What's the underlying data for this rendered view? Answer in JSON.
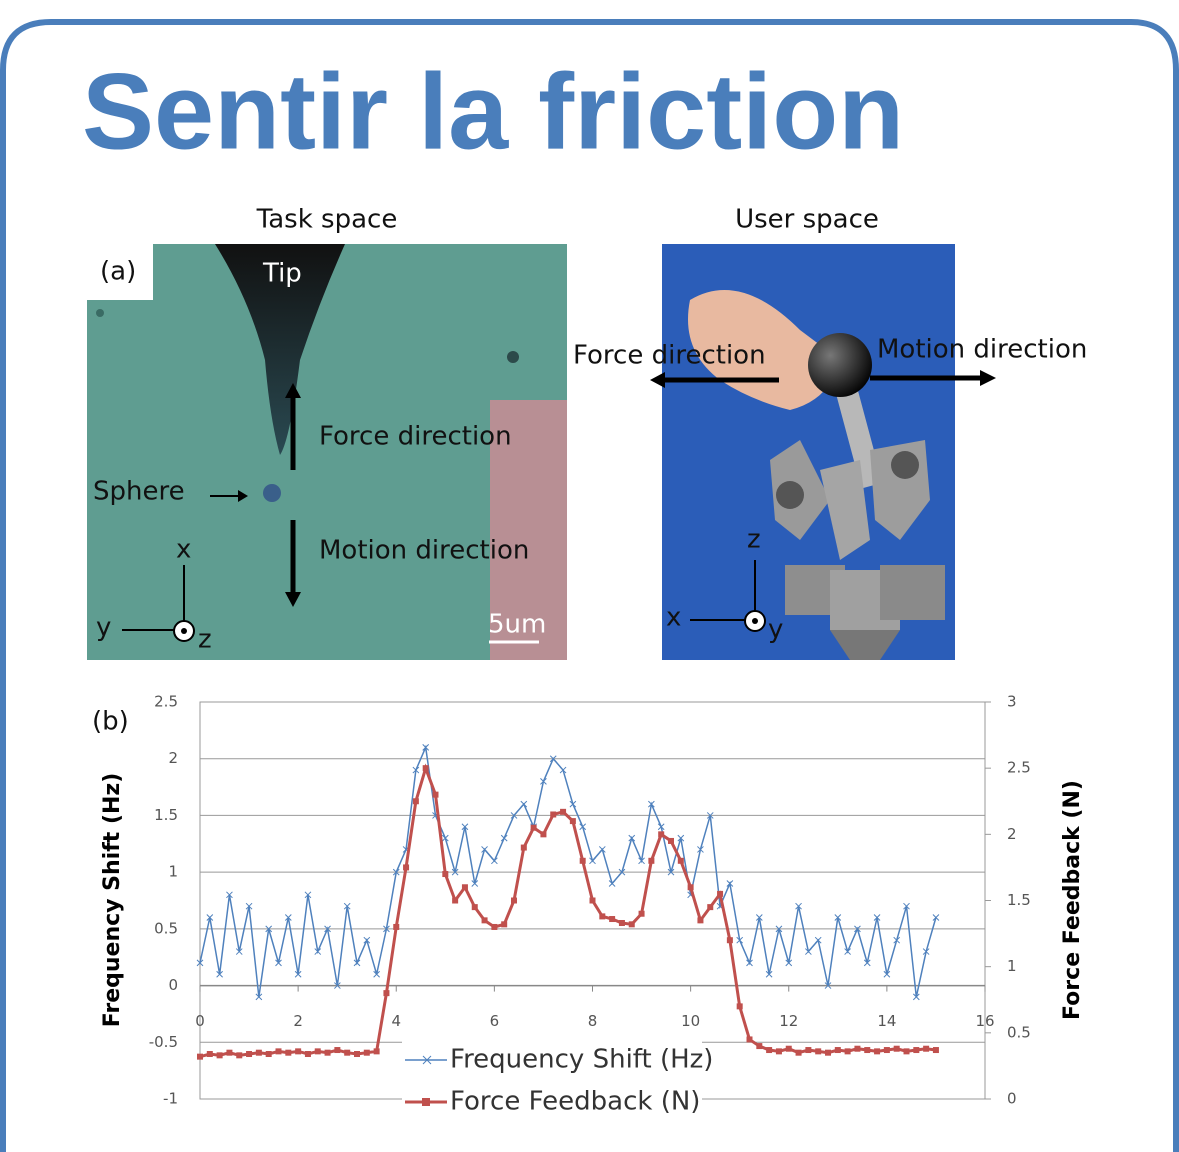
{
  "header": {
    "title": "Sentir la friction"
  },
  "task_space": {
    "caption": "Task space",
    "panel": "(a)",
    "tip": "Tip",
    "force": "Force direction",
    "sphere": "Sphere",
    "motion": "Motion direction",
    "x": "x",
    "y": "y",
    "z": "z",
    "scale": "5um"
  },
  "user_space": {
    "caption": "User space",
    "force": "Force direction",
    "motion": "Motion direction",
    "z": "z",
    "x": "x",
    "y": "y"
  },
  "chart_data": {
    "type": "line",
    "panel": "(b)",
    "y_label": "Frequency Shift (Hz)",
    "y2_label": "Force Feedback (N)",
    "xlim": [
      0,
      16
    ],
    "xticks": [
      0,
      2,
      4,
      6,
      8,
      10,
      12,
      14,
      16
    ],
    "ylim": [
      -1,
      2.5
    ],
    "yticks": [
      -1,
      -0.5,
      0,
      0.5,
      1,
      1.5,
      2,
      2.5
    ],
    "y2lim": [
      0,
      3
    ],
    "y2ticks": [
      0,
      0.5,
      1,
      1.5,
      2,
      2.5,
      3
    ],
    "grid": true,
    "x": [
      0,
      0.2,
      0.4,
      0.6,
      0.8,
      1,
      1.2,
      1.4,
      1.6,
      1.8,
      2,
      2.2,
      2.4,
      2.6,
      2.8,
      3,
      3.2,
      3.4,
      3.6,
      3.8,
      4,
      4.2,
      4.4,
      4.6,
      4.8,
      5,
      5.2,
      5.4,
      5.6,
      5.8,
      6,
      6.2,
      6.4,
      6.6,
      6.8,
      7,
      7.2,
      7.4,
      7.6,
      7.8,
      8,
      8.2,
      8.4,
      8.6,
      8.8,
      9,
      9.2,
      9.4,
      9.6,
      9.8,
      10,
      10.2,
      10.4,
      10.6,
      10.8,
      11,
      11.2,
      11.4,
      11.6,
      11.8,
      12,
      12.2,
      12.4,
      12.6,
      12.8,
      13,
      13.2,
      13.4,
      13.6,
      13.8,
      14,
      14.2,
      14.4,
      14.6,
      14.8,
      15
    ],
    "series": [
      {
        "name": "Frequency Shift (Hz)",
        "color": "#4f81bd",
        "marker": "x",
        "values": [
          0.2,
          0.6,
          0.1,
          0.8,
          0.3,
          0.7,
          -0.1,
          0.5,
          0.2,
          0.6,
          0.1,
          0.8,
          0.3,
          0.5,
          0.0,
          0.7,
          0.2,
          0.4,
          0.1,
          0.5,
          1.0,
          1.2,
          1.9,
          2.1,
          1.5,
          1.3,
          1.0,
          1.4,
          0.9,
          1.2,
          1.1,
          1.3,
          1.5,
          1.6,
          1.4,
          1.8,
          2.0,
          1.9,
          1.6,
          1.4,
          1.1,
          1.2,
          0.9,
          1.0,
          1.3,
          1.1,
          1.6,
          1.4,
          1.0,
          1.3,
          0.8,
          1.2,
          1.5,
          0.7,
          0.9,
          0.4,
          0.2,
          0.6,
          0.1,
          0.5,
          0.2,
          0.7,
          0.3,
          0.4,
          0.0,
          0.6,
          0.3,
          0.5,
          0.2,
          0.6,
          0.1,
          0.4,
          0.7,
          -0.1,
          0.3,
          0.6
        ]
      },
      {
        "name": "Force Feedback (N)",
        "color": "#c0504d",
        "marker": "square",
        "axis": "y2",
        "values": [
          0.32,
          0.34,
          0.33,
          0.35,
          0.33,
          0.34,
          0.35,
          0.34,
          0.36,
          0.35,
          0.36,
          0.34,
          0.36,
          0.35,
          0.37,
          0.35,
          0.34,
          0.35,
          0.36,
          0.8,
          1.3,
          1.75,
          2.25,
          2.5,
          2.3,
          1.7,
          1.5,
          1.6,
          1.45,
          1.35,
          1.3,
          1.32,
          1.5,
          1.9,
          2.05,
          2.0,
          2.15,
          2.17,
          2.1,
          1.8,
          1.5,
          1.38,
          1.36,
          1.33,
          1.32,
          1.4,
          1.8,
          2.0,
          1.95,
          1.8,
          1.6,
          1.35,
          1.45,
          1.55,
          1.2,
          0.7,
          0.45,
          0.4,
          0.37,
          0.36,
          0.38,
          0.35,
          0.37,
          0.36,
          0.35,
          0.37,
          0.36,
          0.38,
          0.37,
          0.36,
          0.37,
          0.38,
          0.36,
          0.37,
          0.38,
          0.37
        ]
      }
    ]
  }
}
